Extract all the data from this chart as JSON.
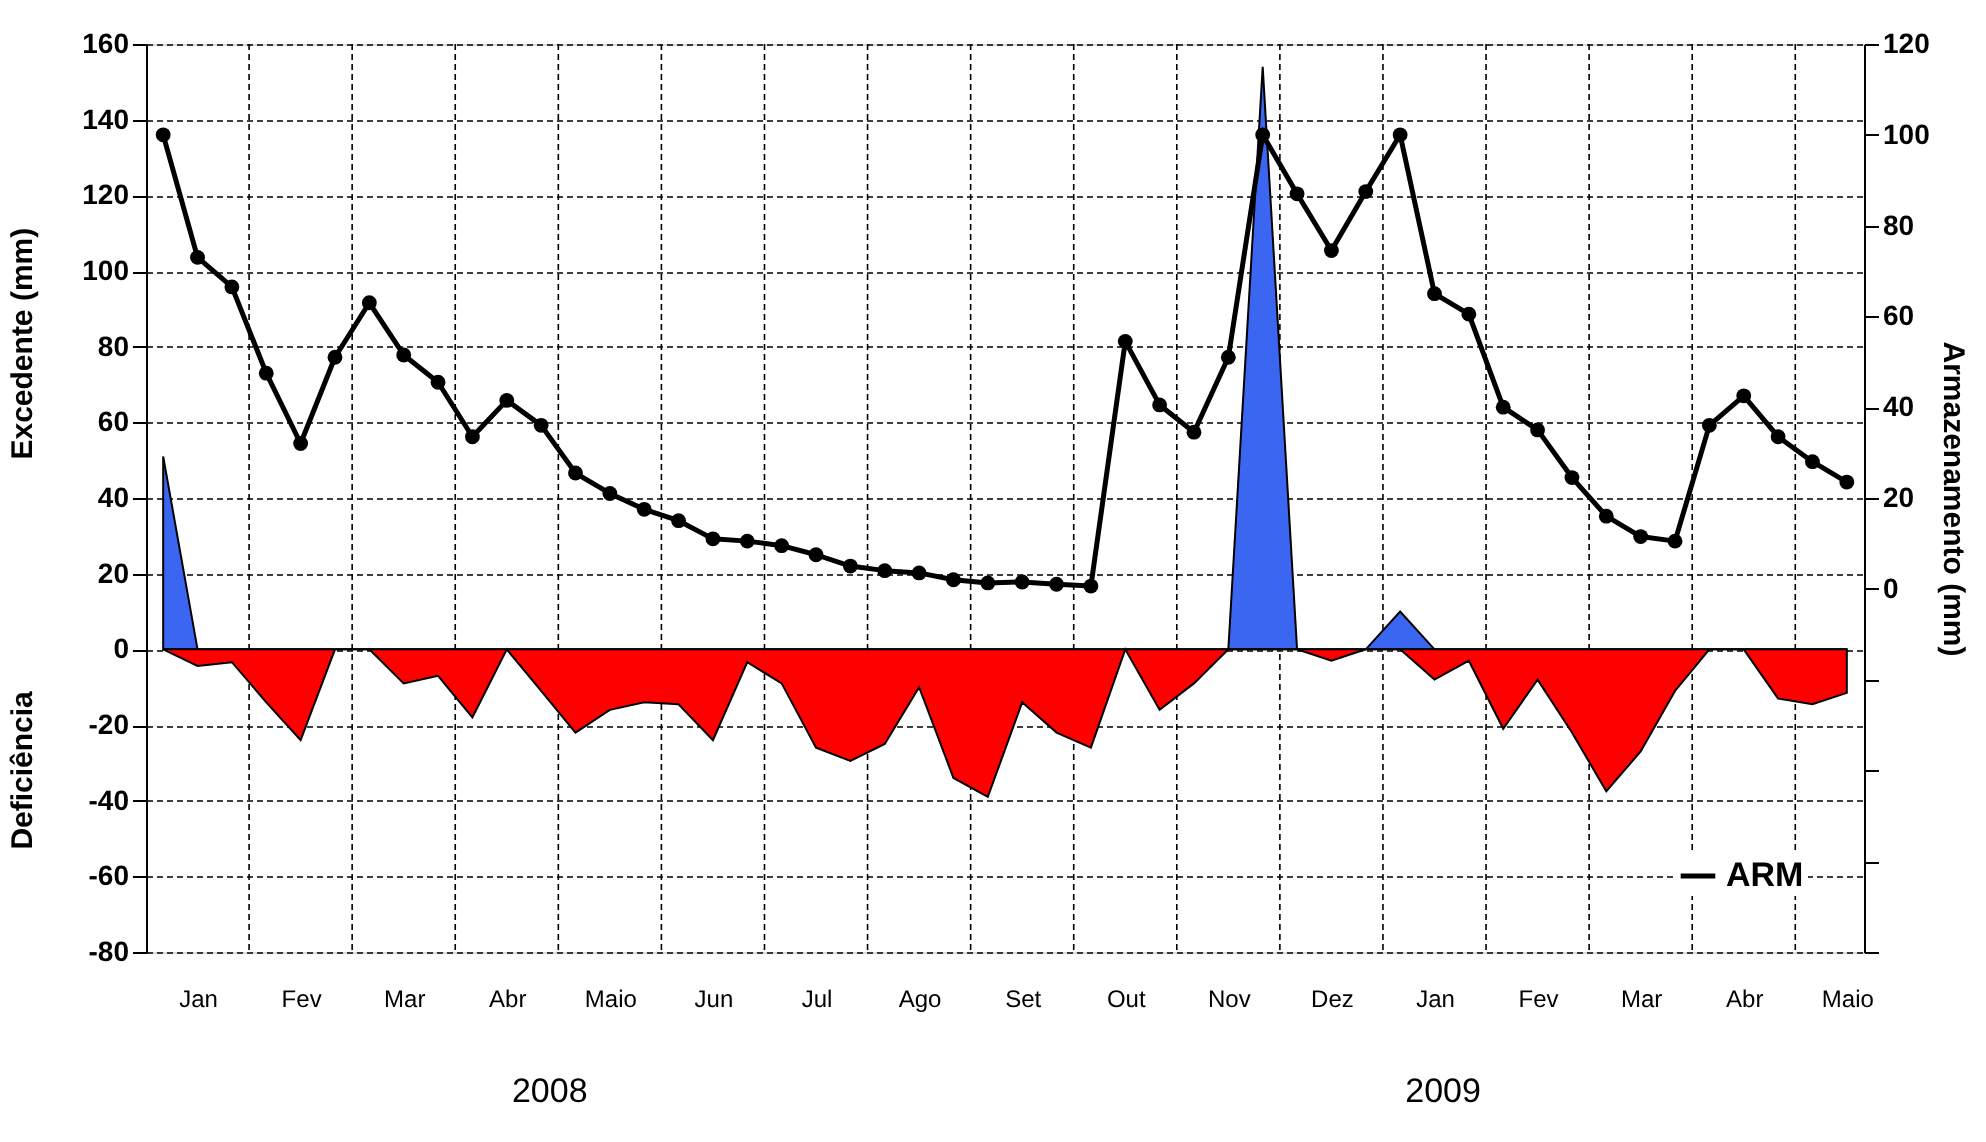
{
  "chart_data": {
    "type": "area",
    "ylabel": "Excedente (mm)",
    "y2label": "Armazenamento (mm)",
    "categories": [
      null,
      "Jan",
      null,
      null,
      "Fev",
      null,
      null,
      "Mar",
      null,
      null,
      "Abr",
      null,
      null,
      "Maio",
      null,
      null,
      "Jun",
      null,
      null,
      "Jul",
      null,
      null,
      "Ago",
      null,
      null,
      "Set",
      null,
      null,
      "Out",
      null,
      null,
      "Nov",
      null,
      null,
      "Dez",
      null,
      null,
      "Jan",
      null,
      null,
      "Fev",
      null,
      null,
      "Mar",
      null,
      null,
      "Abr",
      null,
      null,
      "Maio"
    ],
    "series": [
      {
        "color": "#3b66f2",
        "values": [
          51,
          0,
          0,
          0,
          0,
          0,
          0,
          0,
          0,
          0,
          0,
          0,
          0,
          0,
          0,
          0,
          0,
          0,
          0,
          0,
          0,
          0,
          0,
          0,
          0,
          0,
          0,
          0,
          0,
          0,
          0,
          0,
          154,
          0,
          0,
          0,
          10,
          0,
          0,
          0,
          0,
          0,
          0,
          0,
          0,
          0,
          0,
          0,
          0,
          0
        ]
      },
      {
        "color": "#ff0000",
        "values": [
          0,
          -4.4,
          -3.4,
          -14,
          -24,
          0,
          0,
          -9,
          -7,
          -18,
          0,
          -11,
          -22,
          -16,
          -14,
          -14.5,
          -24,
          -3.4,
          -9,
          -26,
          -29.5,
          -25,
          -10,
          -34,
          -39,
          -14,
          -22,
          -26,
          0,
          -16,
          -9,
          0,
          0,
          0,
          -3,
          0,
          0,
          -8,
          -3,
          -21,
          -8,
          -22,
          -37.5,
          -27,
          -11,
          0,
          0,
          -13,
          -14.5,
          -11.5
        ]
      },
      {
        "name": "ARM",
        "type": "line",
        "marker": "circle",
        "line_style": "solid",
        "axis": "y2",
        "color": "#000000",
        "values": [
          100,
          73,
          66.5,
          47.5,
          32,
          51,
          63,
          51.5,
          45.5,
          33.5,
          41.5,
          36,
          25.5,
          21,
          17.5,
          15,
          11,
          10.5,
          9.5,
          7.5,
          5,
          4,
          3.5,
          2,
          1.3,
          1.5,
          1,
          0.6,
          54.5,
          40.5,
          34.5,
          51,
          100,
          87,
          74.5,
          87.5,
          100,
          65,
          60.5,
          40,
          35,
          24.5,
          16,
          11.5,
          10.5,
          36,
          42.5,
          33.5,
          28,
          23.5
        ]
      }
    ],
    "ylim": [
      -80,
      160
    ],
    "yticks": [
      -80,
      -60,
      -40,
      -20,
      0,
      20,
      40,
      60,
      80,
      100,
      120,
      140,
      160
    ],
    "y2lim": [
      -80,
      120
    ],
    "y2ticks": [
      {
        "value": -80,
        "label": null
      },
      {
        "value": -60,
        "label": null
      },
      {
        "value": -40,
        "label": null
      },
      {
        "value": -20,
        "label": null
      },
      0,
      20,
      40,
      60,
      80,
      100,
      120
    ],
    "grid": true,
    "legend": "bottom right",
    "annotations": [
      "Deficiência",
      "2008",
      "2009"
    ]
  }
}
